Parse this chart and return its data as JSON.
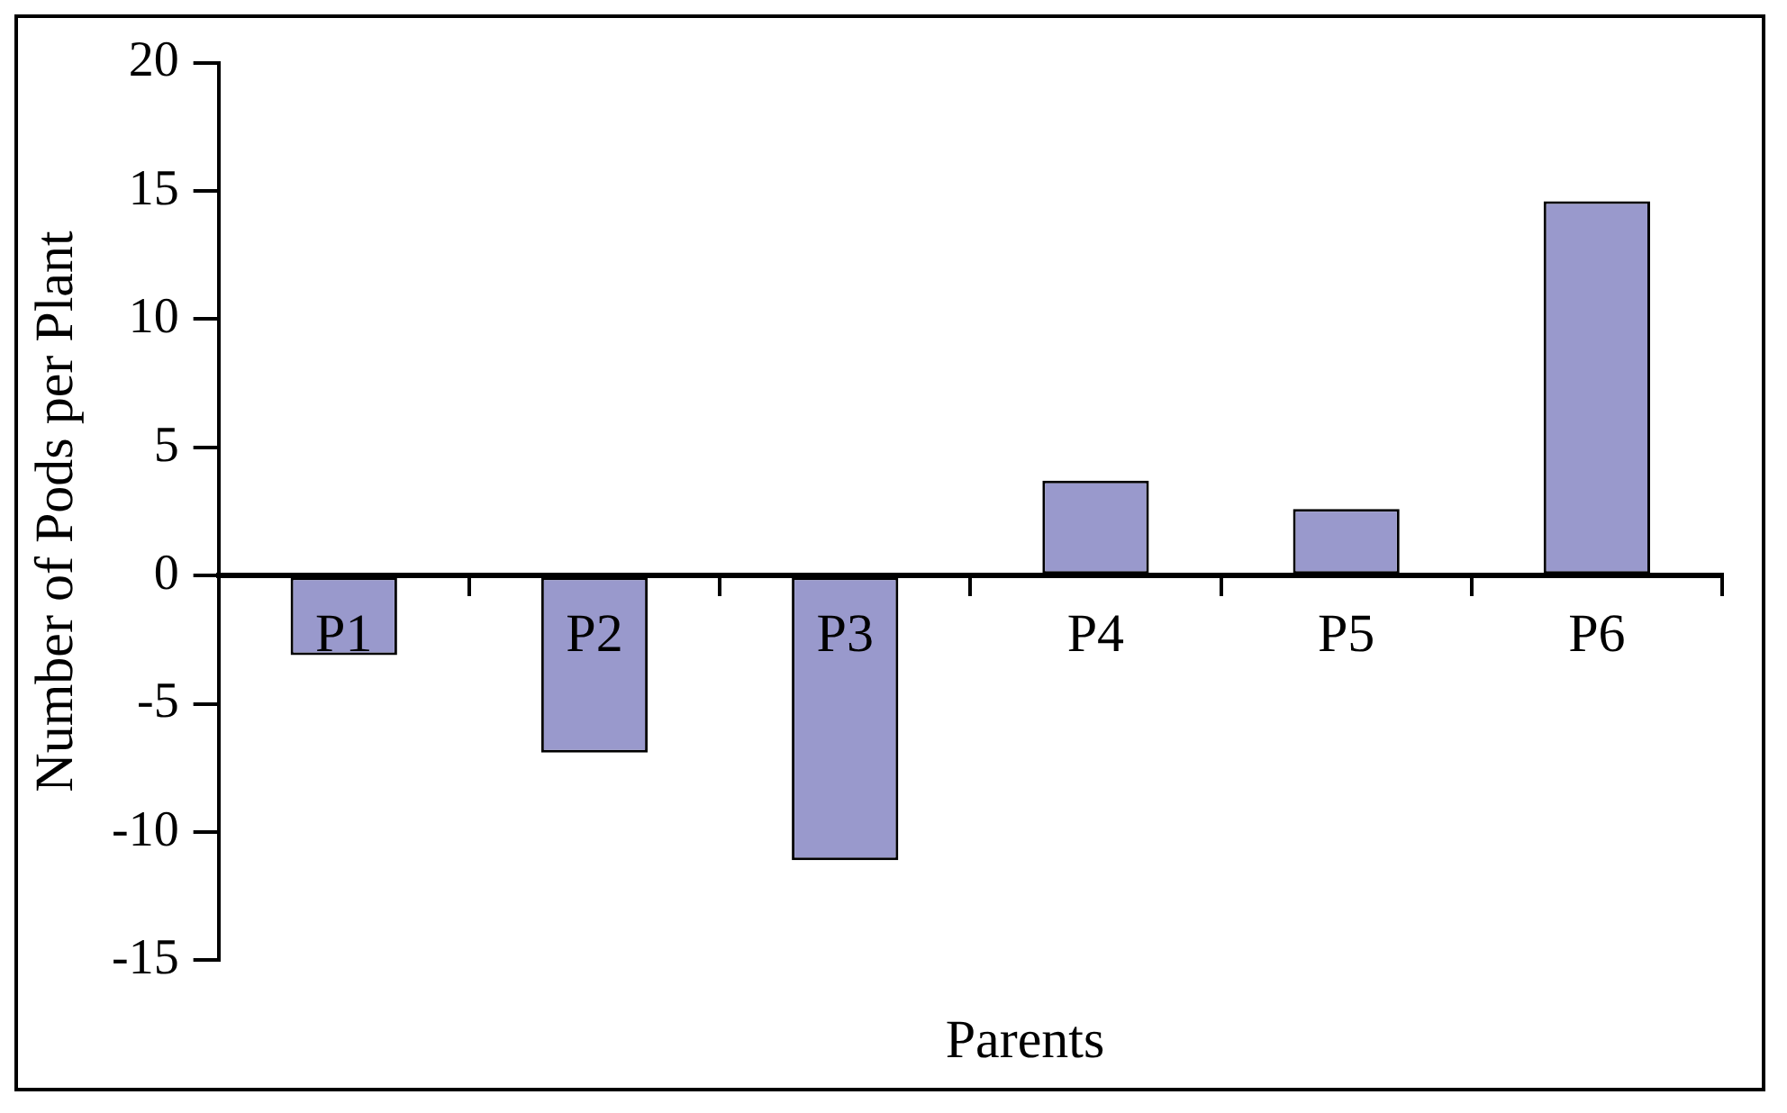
{
  "chart_data": {
    "type": "bar",
    "xlabel": "Parents",
    "ylabel": "Number of Pods per Plant",
    "categories": [
      "P1",
      "P2",
      "P3",
      "P4",
      "P5",
      "P6"
    ],
    "values": [
      -3.1,
      -6.9,
      -11.1,
      3.7,
      2.6,
      14.6
    ],
    "color": "#9999cc",
    "ylim": [
      -15,
      20
    ],
    "yticks": [
      -15,
      -10,
      -5,
      0,
      5,
      10,
      15,
      20
    ],
    "grid": false,
    "legend": false
  }
}
